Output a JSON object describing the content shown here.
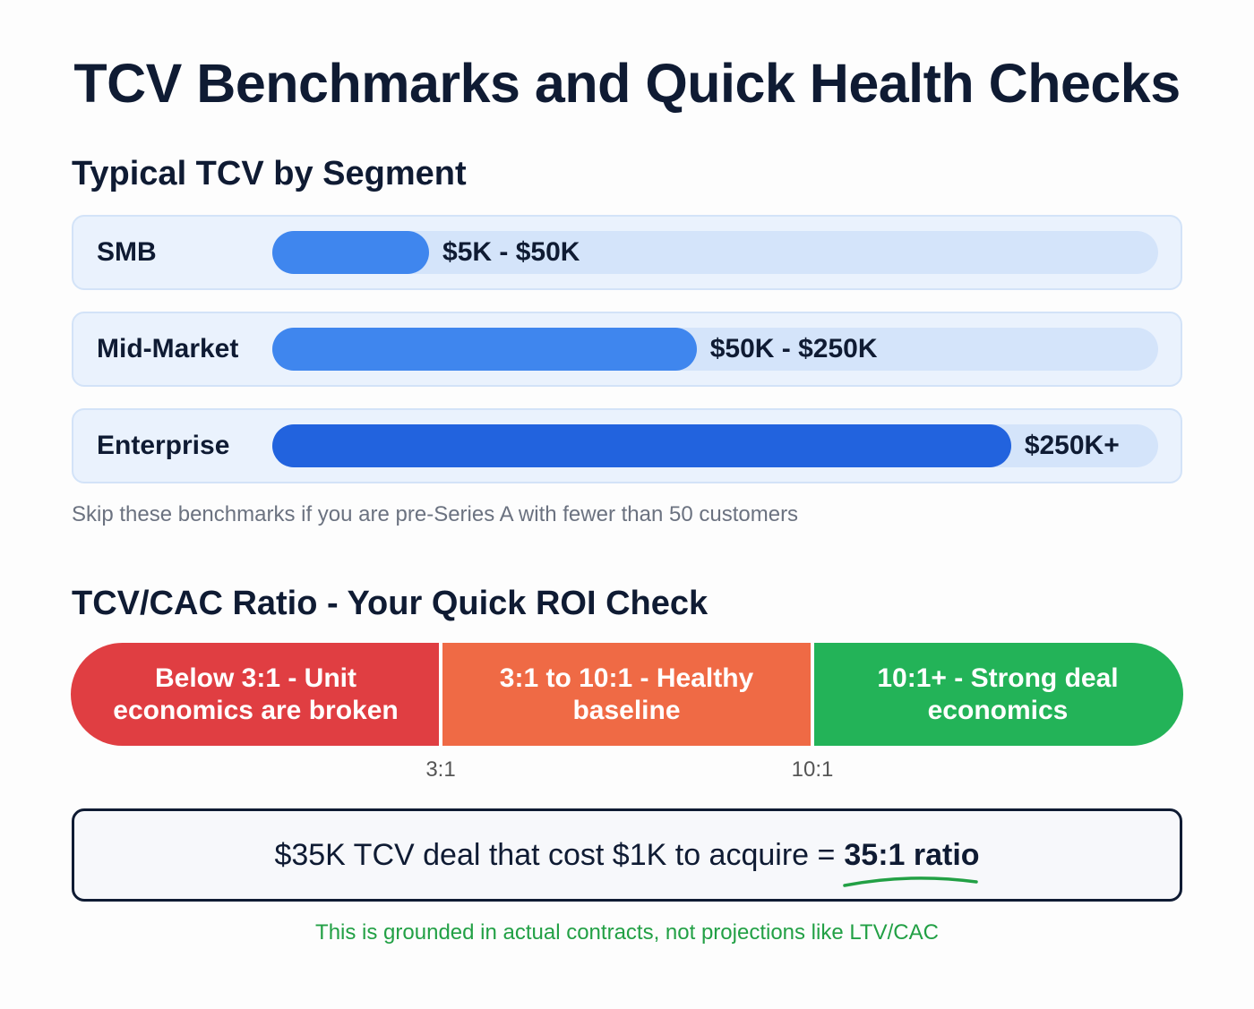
{
  "title": "TCV Benchmarks and Quick Health Checks",
  "segments_heading": "Typical TCV by Segment",
  "segments": [
    {
      "label": "SMB",
      "range": "$5K - $50K",
      "fill": 0.177,
      "color": "#3f86ee"
    },
    {
      "label": "Mid-Market",
      "range": "$50K - $250K",
      "fill": 0.479,
      "color": "#3f86ee"
    },
    {
      "label": "Enterprise",
      "range": "$250K+",
      "fill": 0.834,
      "color": "#2263de"
    }
  ],
  "note": "Skip these benchmarks if you are pre-Series A with fewer than 50 customers",
  "ratio_heading": "TCV/CAC Ratio - Your Quick ROI Check",
  "ratio_zones": [
    {
      "label": "Below 3:1 - Unit economics are broken",
      "color": "#e03e42"
    },
    {
      "label": "3:1 to 10:1 - Healthy baseline",
      "color": "#ef6a45"
    },
    {
      "label": "10:1+ - Strong deal economics",
      "color": "#23b358"
    }
  ],
  "ticks": [
    "3:1",
    "10:1"
  ],
  "example": {
    "text": "$35K TCV deal that cost $1K to acquire =",
    "highlight": "35:1 ratio"
  },
  "footer": {
    "text": "This is grounded in actual contracts, not projections like LTV/CAC",
    "color": "#22a045"
  }
}
